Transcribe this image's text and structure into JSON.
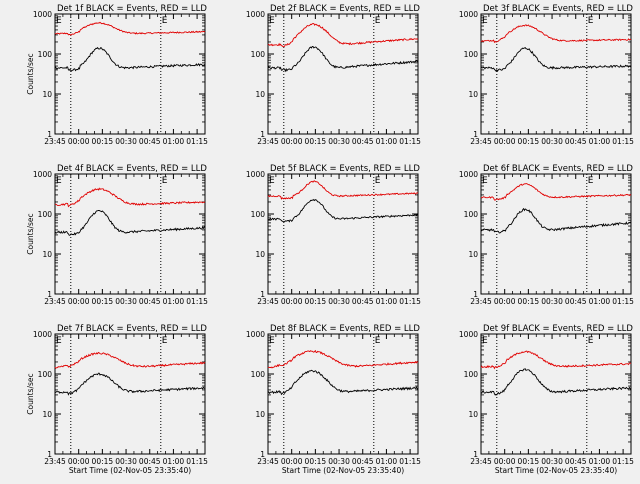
{
  "figure": {
    "background": "#f0f0f0",
    "events_color": "#000000",
    "lld_color": "#e00000"
  },
  "chart_data": [
    {
      "type": "line",
      "detector": "1f",
      "title": "Det 1f BLACK = Events, RED = LLD",
      "xlabel": "",
      "ylabel": "Counts/sec",
      "yscale": "log",
      "ylim": [
        1,
        1000
      ],
      "y_ticks": [
        "1",
        "10",
        "100",
        "1000"
      ],
      "x_ticks": [
        "23:45",
        "00:00",
        "00:15",
        "00:30",
        "00:45",
        "01:00",
        "01:15"
      ],
      "x_minutes_from_start": [
        0,
        15,
        30,
        45,
        60,
        75,
        90
      ],
      "dotted_lines_at_minutes": [
        10,
        67
      ],
      "markers": [
        "E",
        "E"
      ],
      "series": [
        {
          "color": "#e00000",
          "baseline": 320,
          "peak": 600,
          "peak_time": 28,
          "width": 8,
          "end": 360,
          "jitter": 0.04
        },
        {
          "color": "#000000",
          "baseline": 45,
          "peak": 140,
          "peak_time": 28,
          "width": 5,
          "end": 55,
          "jitter": 0.06
        }
      ]
    },
    {
      "type": "line",
      "detector": "2f",
      "title": "Det 2f BLACK = Events, RED = LLD",
      "xlabel": "",
      "ylabel": "",
      "yscale": "log",
      "ylim": [
        1,
        1000
      ],
      "y_ticks": [
        "1",
        "10",
        "100",
        "1000"
      ],
      "x_ticks": [
        "23:45",
        "00:00",
        "00:15",
        "00:30",
        "00:45",
        "01:00",
        "01:15"
      ],
      "x_minutes_from_start": [
        0,
        15,
        30,
        45,
        60,
        75,
        90
      ],
      "dotted_lines_at_minutes": [
        10,
        67
      ],
      "markers": [
        "E",
        "E"
      ],
      "series": [
        {
          "color": "#e00000",
          "baseline": 170,
          "peak": 550,
          "peak_time": 29,
          "width": 7,
          "end": 240,
          "jitter": 0.05
        },
        {
          "color": "#000000",
          "baseline": 45,
          "peak": 150,
          "peak_time": 29,
          "width": 5,
          "end": 65,
          "jitter": 0.06
        }
      ]
    },
    {
      "type": "line",
      "detector": "3f",
      "title": "Det 3f BLACK = Events, RED = LLD",
      "xlabel": "",
      "ylabel": "",
      "yscale": "log",
      "ylim": [
        1,
        1000
      ],
      "y_ticks": [
        "1",
        "10",
        "100",
        "1000"
      ],
      "x_ticks": [
        "23:45",
        "00:00",
        "00:15",
        "00:30",
        "00:45",
        "01:00",
        "01:15"
      ],
      "x_minutes_from_start": [
        0,
        15,
        30,
        45,
        60,
        75,
        90
      ],
      "dotted_lines_at_minutes": [
        10,
        67
      ],
      "markers": [
        "E",
        "E"
      ],
      "series": [
        {
          "color": "#e00000",
          "baseline": 210,
          "peak": 520,
          "peak_time": 28,
          "width": 8,
          "end": 230,
          "jitter": 0.04
        },
        {
          "color": "#000000",
          "baseline": 45,
          "peak": 140,
          "peak_time": 28,
          "width": 5,
          "end": 50,
          "jitter": 0.06
        }
      ]
    },
    {
      "type": "line",
      "detector": "4f",
      "title": "Det 4f BLACK = Events, RED = LLD",
      "xlabel": "",
      "ylabel": "Counts/sec",
      "yscale": "log",
      "ylim": [
        1,
        1000
      ],
      "y_ticks": [
        "1",
        "10",
        "100",
        "1000"
      ],
      "x_ticks": [
        "23:45",
        "00:00",
        "00:15",
        "00:30",
        "00:45",
        "01:00",
        "01:15"
      ],
      "x_minutes_from_start": [
        0,
        15,
        30,
        45,
        60,
        75,
        90
      ],
      "dotted_lines_at_minutes": [
        10,
        67
      ],
      "markers": [
        "E",
        "E"
      ],
      "series": [
        {
          "color": "#e00000",
          "baseline": 170,
          "peak": 420,
          "peak_time": 28,
          "width": 8,
          "end": 200,
          "jitter": 0.05
        },
        {
          "color": "#000000",
          "baseline": 35,
          "peak": 120,
          "peak_time": 28,
          "width": 5,
          "end": 45,
          "jitter": 0.06
        }
      ]
    },
    {
      "type": "line",
      "detector": "5f",
      "title": "Det 5f BLACK = Events, RED = LLD",
      "xlabel": "",
      "ylabel": "",
      "yscale": "log",
      "ylim": [
        1,
        1000
      ],
      "y_ticks": [
        "1",
        "10",
        "100",
        "1000"
      ],
      "x_ticks": [
        "23:45",
        "00:00",
        "00:15",
        "00:30",
        "00:45",
        "01:00",
        "01:15"
      ],
      "x_minutes_from_start": [
        0,
        15,
        30,
        45,
        60,
        75,
        90
      ],
      "dotted_lines_at_minutes": [
        10,
        67
      ],
      "markers": [
        "E",
        "E"
      ],
      "series": [
        {
          "color": "#e00000",
          "baseline": 280,
          "peak": 650,
          "peak_time": 29,
          "width": 5,
          "end": 330,
          "jitter": 0.04
        },
        {
          "color": "#000000",
          "baseline": 75,
          "peak": 230,
          "peak_time": 29,
          "width": 5,
          "end": 95,
          "jitter": 0.05
        }
      ]
    },
    {
      "type": "line",
      "detector": "6f",
      "title": "Det 6f BLACK = Events, RED = LLD",
      "xlabel": "",
      "ylabel": "",
      "yscale": "log",
      "ylim": [
        1,
        1000
      ],
      "y_ticks": [
        "1",
        "10",
        "100",
        "1000"
      ],
      "x_ticks": [
        "23:45",
        "00:00",
        "00:15",
        "00:30",
        "00:45",
        "01:00",
        "01:15"
      ],
      "x_minutes_from_start": [
        0,
        15,
        30,
        45,
        60,
        75,
        90
      ],
      "dotted_lines_at_minutes": [
        10,
        67
      ],
      "markers": [
        "E",
        "E"
      ],
      "series": [
        {
          "color": "#e00000",
          "baseline": 260,
          "peak": 560,
          "peak_time": 28,
          "width": 6,
          "end": 300,
          "jitter": 0.04
        },
        {
          "color": "#000000",
          "baseline": 40,
          "peak": 130,
          "peak_time": 28,
          "width": 5,
          "end": 60,
          "jitter": 0.06
        }
      ]
    },
    {
      "type": "line",
      "detector": "7f",
      "title": "Det 7f BLACK = Events, RED = LLD",
      "xlabel": "Start Time (02-Nov-05 23:35:40)",
      "ylabel": "Counts/sec",
      "yscale": "log",
      "ylim": [
        1,
        1000
      ],
      "y_ticks": [
        "1",
        "10",
        "100",
        "1000"
      ],
      "x_ticks": [
        "23:45",
        "00:00",
        "00:15",
        "00:30",
        "00:45",
        "01:00",
        "01:15"
      ],
      "x_minutes_from_start": [
        0,
        15,
        30,
        45,
        60,
        75,
        90
      ],
      "dotted_lines_at_minutes": [
        10,
        67
      ],
      "markers": [
        "E",
        "E"
      ],
      "series": [
        {
          "color": "#e00000",
          "baseline": 140,
          "peak": 330,
          "peak_time": 28,
          "width": 10,
          "end": 190,
          "jitter": 0.05
        },
        {
          "color": "#000000",
          "baseline": 35,
          "peak": 100,
          "peak_time": 28,
          "width": 7,
          "end": 45,
          "jitter": 0.06
        }
      ]
    },
    {
      "type": "line",
      "detector": "8f",
      "title": "Det 8f BLACK = Events, RED = LLD",
      "xlabel": "Start Time (02-Nov-05 23:35:40)",
      "ylabel": "",
      "yscale": "log",
      "ylim": [
        1,
        1000
      ],
      "y_ticks": [
        "1",
        "10",
        "100",
        "1000"
      ],
      "x_ticks": [
        "23:45",
        "00:00",
        "00:15",
        "00:30",
        "00:45",
        "01:00",
        "01:15"
      ],
      "x_minutes_from_start": [
        0,
        15,
        30,
        45,
        60,
        75,
        90
      ],
      "dotted_lines_at_minutes": [
        10,
        67
      ],
      "markers": [
        "E",
        "E"
      ],
      "series": [
        {
          "color": "#e00000",
          "baseline": 140,
          "peak": 370,
          "peak_time": 28,
          "width": 10,
          "end": 200,
          "jitter": 0.05
        },
        {
          "color": "#000000",
          "baseline": 35,
          "peak": 120,
          "peak_time": 28,
          "width": 7,
          "end": 45,
          "jitter": 0.06
        }
      ]
    },
    {
      "type": "line",
      "detector": "9f",
      "title": "Det 9f BLACK = Events, RED = LLD",
      "xlabel": "Start Time (02-Nov-05 23:35:40)",
      "ylabel": "",
      "yscale": "log",
      "ylim": [
        1,
        1000
      ],
      "y_ticks": [
        "1",
        "10",
        "100",
        "1000"
      ],
      "x_ticks": [
        "23:45",
        "00:00",
        "00:15",
        "00:30",
        "00:45",
        "01:00",
        "01:15"
      ],
      "x_minutes_from_start": [
        0,
        15,
        30,
        45,
        60,
        75,
        90
      ],
      "dotted_lines_at_minutes": [
        10,
        67
      ],
      "markers": [
        "E",
        "E"
      ],
      "series": [
        {
          "color": "#e00000",
          "baseline": 150,
          "peak": 360,
          "peak_time": 28,
          "width": 8,
          "end": 180,
          "jitter": 0.05
        },
        {
          "color": "#000000",
          "baseline": 35,
          "peak": 130,
          "peak_time": 28,
          "width": 6,
          "end": 45,
          "jitter": 0.06
        }
      ]
    }
  ]
}
